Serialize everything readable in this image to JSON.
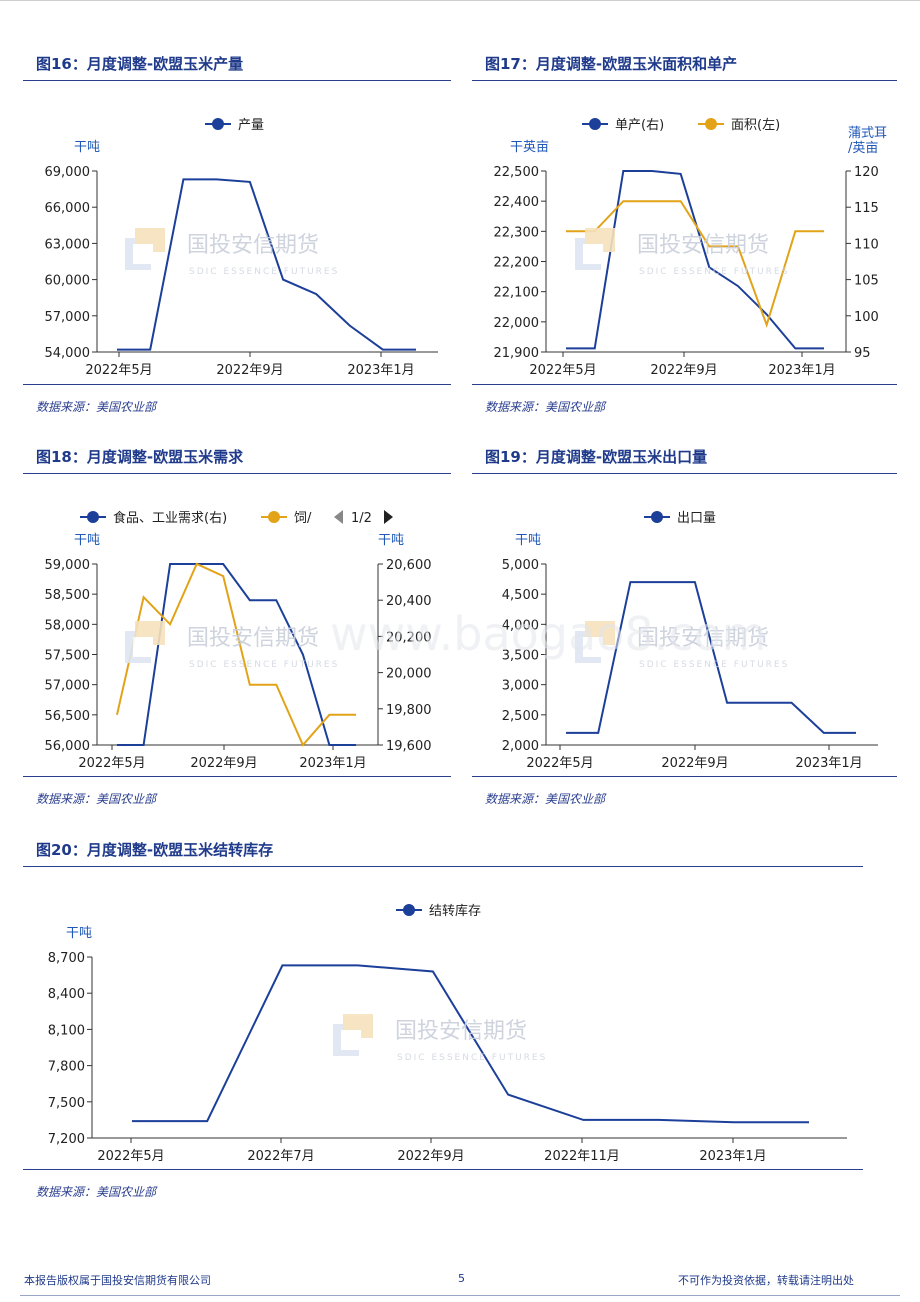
{
  "footer": {
    "left": "本报告版权属于国投安信期货有限公司",
    "page": "5",
    "right": "不可作为投资依据，转载请注明出处"
  },
  "watermark": {
    "cn": "国投安信期货",
    "en": "SDIC ESSENCE FUTURES",
    "site": "www.baogao8.com"
  },
  "colors": {
    "navy": "#1c3f9a",
    "gold": "#e2a319",
    "title": "#1f3a8a"
  },
  "chart_data": [
    {
      "id": "fig16",
      "type": "line",
      "title": "图16：月度调整-欧盟玉米产量",
      "source": "数据来源：美国农业部",
      "unit_left": "干吨",
      "legend": [
        "产量"
      ],
      "xticks": [
        "2022年5月",
        "2022年9月",
        "2023年1月"
      ],
      "ylim": [
        54000,
        69000
      ],
      "yticks": [
        "54,000",
        "57,000",
        "60,000",
        "63,000",
        "66,000",
        "69,000"
      ],
      "series": [
        {
          "name": "产量",
          "axis": "left",
          "color": "#1c3f9a",
          "values": [
            54200,
            54200,
            68300,
            68300,
            68100,
            60000,
            58800,
            56200,
            54200,
            54200
          ]
        }
      ]
    },
    {
      "id": "fig17",
      "type": "line",
      "title": "图17：月度调整-欧盟玉米面积和单产",
      "source": "数据来源：美国农业部",
      "unit_left": "干英亩",
      "unit_right": [
        "蒲式耳",
        "/英亩"
      ],
      "legend": [
        "单产(右)",
        "面积(左)"
      ],
      "xticks": [
        "2022年5月",
        "2022年9月",
        "2023年1月"
      ],
      "ylim": [
        21900,
        22500
      ],
      "yticks": [
        "21,900",
        "22,000",
        "22,100",
        "22,200",
        "22,300",
        "22,400",
        "22,500"
      ],
      "ylim_right": [
        95,
        120
      ],
      "yticks_right": [
        "95",
        "100",
        "105",
        "110",
        "115",
        "120"
      ],
      "series": [
        {
          "name": "单产(右)",
          "axis": "right",
          "color": "#1c3f9a",
          "values": [
            95.5,
            95.5,
            120,
            120,
            119.6,
            106.7,
            104.1,
            100.2,
            95.5,
            95.5
          ]
        },
        {
          "name": "面积(左)",
          "axis": "left",
          "color": "#e2a319",
          "values": [
            22300,
            22300,
            22400,
            22400,
            22400,
            22250,
            22250,
            21990,
            22300,
            22300
          ]
        }
      ]
    },
    {
      "id": "fig18",
      "type": "line",
      "title": "图18：月度调整-欧盟玉米需求",
      "source": "数据来源：美国农业部",
      "unit_left": "干吨",
      "unit_right": [
        "干吨"
      ],
      "legend": [
        "食品、工业需求(右)",
        "饲/"
      ],
      "legend_pager": "1/2",
      "xticks": [
        "2022年5月",
        "2022年9月",
        "2023年1月"
      ],
      "ylim": [
        56000,
        59000
      ],
      "yticks": [
        "56,000",
        "56,500",
        "57,000",
        "57,500",
        "58,000",
        "58,500",
        "59,000"
      ],
      "ylim_right": [
        19600,
        20600
      ],
      "yticks_right": [
        "19,600",
        "19,800",
        "20,000",
        "20,200",
        "20,400",
        "20,600"
      ],
      "series": [
        {
          "name": "食品、工业需求(右)",
          "axis": "right",
          "color": "#1c3f9a",
          "values": [
            19600,
            19600,
            20600,
            20600,
            20600,
            20400,
            20400,
            20100,
            19600,
            19600
          ]
        },
        {
          "name": "饲料",
          "axis": "left",
          "color": "#e2a319",
          "values": [
            56500,
            58450,
            58000,
            59000,
            58800,
            57000,
            57000,
            56000,
            56500,
            56500
          ]
        }
      ]
    },
    {
      "id": "fig19",
      "type": "line",
      "title": "图19：月度调整-欧盟玉米出口量",
      "source": "数据来源：美国农业部",
      "unit_left": "干吨",
      "legend": [
        "出口量"
      ],
      "xticks": [
        "2022年5月",
        "2022年9月",
        "2023年1月"
      ],
      "ylim": [
        2000,
        5000
      ],
      "yticks": [
        "2,000",
        "2,500",
        "3,000",
        "3,500",
        "4,000",
        "4,500",
        "5,000"
      ],
      "series": [
        {
          "name": "出口量",
          "axis": "left",
          "color": "#1c3f9a",
          "values": [
            2200,
            2200,
            4700,
            4700,
            4700,
            2700,
            2700,
            2700,
            2200,
            2200
          ]
        }
      ]
    },
    {
      "id": "fig20",
      "type": "line",
      "title": "图20：月度调整-欧盟玉米结转库存",
      "source": "数据来源：美国农业部",
      "unit_left": "干吨",
      "legend": [
        "结转库存"
      ],
      "xticks": [
        "2022年5月",
        "2022年7月",
        "2022年9月",
        "2022年11月",
        "2023年1月"
      ],
      "ylim": [
        7200,
        8700
      ],
      "yticks": [
        "7,200",
        "7,500",
        "7,800",
        "8,100",
        "8,400",
        "8,700"
      ],
      "series": [
        {
          "name": "结转库存",
          "axis": "left",
          "color": "#1c3f9a",
          "values": [
            7340,
            7340,
            8630,
            8630,
            8580,
            7560,
            7350,
            7350,
            7330,
            7330
          ]
        }
      ]
    }
  ]
}
